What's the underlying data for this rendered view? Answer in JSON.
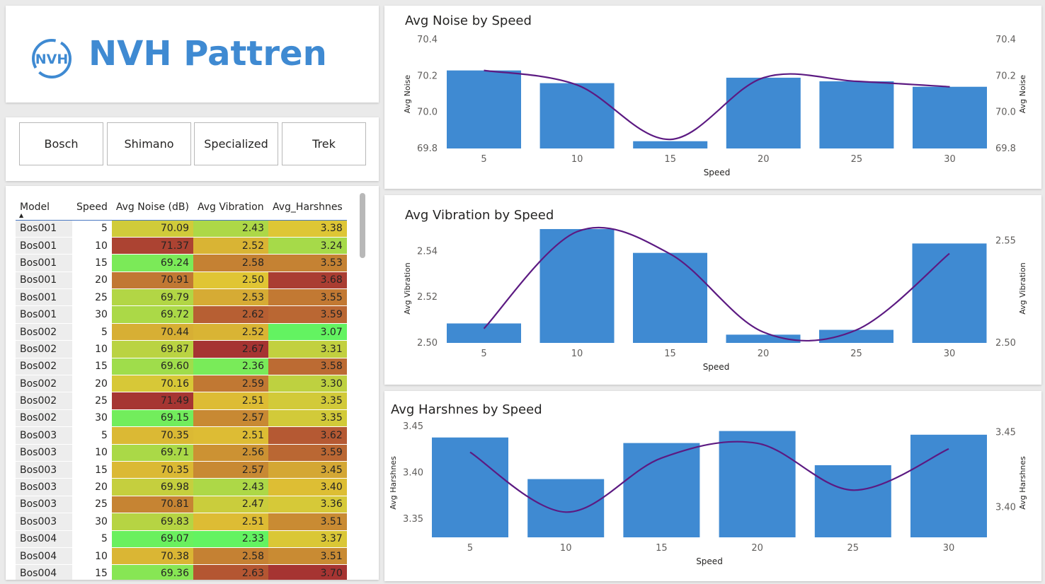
{
  "header": {
    "title": "NVH Pattren",
    "logo_text": "NVH"
  },
  "slicer": {
    "buttons": [
      "Bosch",
      "Shimano",
      "Specialized",
      "Trek"
    ]
  },
  "table": {
    "columns": [
      "Model",
      "Speed",
      "Avg Noise (dB)",
      "Avg Vibration",
      "Avg_Harshnes"
    ],
    "rows": [
      [
        "Bos001",
        "5",
        "70.09",
        "2.43",
        "3.38"
      ],
      [
        "Bos001",
        "10",
        "71.37",
        "2.52",
        "3.24"
      ],
      [
        "Bos001",
        "15",
        "69.24",
        "2.58",
        "3.53"
      ],
      [
        "Bos001",
        "20",
        "70.91",
        "2.50",
        "3.68"
      ],
      [
        "Bos001",
        "25",
        "69.79",
        "2.53",
        "3.55"
      ],
      [
        "Bos001",
        "30",
        "69.72",
        "2.62",
        "3.59"
      ],
      [
        "Bos002",
        "5",
        "70.44",
        "2.52",
        "3.07"
      ],
      [
        "Bos002",
        "10",
        "69.87",
        "2.67",
        "3.31"
      ],
      [
        "Bos002",
        "15",
        "69.60",
        "2.36",
        "3.58"
      ],
      [
        "Bos002",
        "20",
        "70.16",
        "2.59",
        "3.30"
      ],
      [
        "Bos002",
        "25",
        "71.49",
        "2.51",
        "3.35"
      ],
      [
        "Bos002",
        "30",
        "69.15",
        "2.57",
        "3.35"
      ],
      [
        "Bos003",
        "5",
        "70.35",
        "2.51",
        "3.62"
      ],
      [
        "Bos003",
        "10",
        "69.71",
        "2.56",
        "3.59"
      ],
      [
        "Bos003",
        "15",
        "70.35",
        "2.57",
        "3.45"
      ],
      [
        "Bos003",
        "20",
        "69.98",
        "2.43",
        "3.40"
      ],
      [
        "Bos003",
        "25",
        "70.81",
        "2.47",
        "3.36"
      ],
      [
        "Bos003",
        "30",
        "69.83",
        "2.51",
        "3.51"
      ],
      [
        "Bos004",
        "5",
        "69.07",
        "2.33",
        "3.37"
      ],
      [
        "Bos004",
        "10",
        "70.38",
        "2.58",
        "3.51"
      ],
      [
        "Bos004",
        "15",
        "69.36",
        "2.63",
        "3.70"
      ]
    ]
  },
  "colors": {
    "bar": "#3f8ad2",
    "line": "#5c1a82",
    "title": "#3f8ad2"
  },
  "chart_data": [
    {
      "type": "bar",
      "title": "Avg Noise by Speed",
      "xlabel": "Speed",
      "ylabel": "Avg Noise",
      "y2label": "Avg Noise",
      "categories": [
        "5",
        "10",
        "15",
        "20",
        "25",
        "30"
      ],
      "series": [
        {
          "type": "bar",
          "values": [
            70.23,
            70.16,
            69.84,
            70.19,
            70.17,
            70.14
          ]
        },
        {
          "type": "line",
          "axis": "right",
          "values": [
            70.23,
            70.15,
            69.85,
            70.19,
            70.17,
            70.14
          ]
        }
      ],
      "ylim": [
        69.8,
        70.4
      ],
      "y2lim": [
        69.8,
        70.4
      ],
      "yticks": [
        "69.8",
        "70.0",
        "70.2",
        "70.4"
      ],
      "y2ticks": [
        "69.8",
        "70.0",
        "70.2",
        "70.4"
      ],
      "grid": false
    },
    {
      "type": "bar",
      "title": "Avg Vibration by Speed",
      "xlabel": "Speed",
      "ylabel": "Avg Vibration",
      "y2label": "Avg Vibration",
      "categories": [
        "5",
        "10",
        "15",
        "20",
        "25",
        "30"
      ],
      "series": [
        {
          "type": "bar",
          "values": [
            2.5085,
            2.5497,
            2.5393,
            2.5036,
            2.5057,
            2.5434
          ]
        },
        {
          "type": "line",
          "axis": "right",
          "values": [
            2.507,
            2.5544,
            2.5435,
            2.5053,
            2.5063,
            2.5437
          ]
        }
      ],
      "ylim": [
        2.5,
        2.55
      ],
      "y2lim": [
        2.5,
        2.556
      ],
      "yticks": [
        "2.50",
        "2.52",
        "2.54"
      ],
      "y2ticks": [
        "2.50",
        "2.55"
      ],
      "grid": false
    },
    {
      "type": "bar",
      "title": "Avg Harshnes by Speed",
      "xlabel": "Speed",
      "ylabel": "Avg Harshnes",
      "y2label": "Avg Harshnes",
      "categories": [
        "5",
        "10",
        "15",
        "20",
        "25",
        "30"
      ],
      "series": [
        {
          "type": "bar",
          "values": [
            3.438,
            3.393,
            3.432,
            3.445,
            3.408,
            3.441
          ]
        },
        {
          "type": "line",
          "axis": "right",
          "values": [
            3.4367,
            3.3968,
            3.4328,
            3.4426,
            3.4114,
            3.4389
          ]
        }
      ],
      "ylim": [
        3.33,
        3.46
      ],
      "y2lim": [
        3.38,
        3.46
      ],
      "yticks": [
        "3.35",
        "3.40",
        "3.45"
      ],
      "y2ticks": [
        "3.40",
        "3.45"
      ],
      "grid": false
    }
  ]
}
